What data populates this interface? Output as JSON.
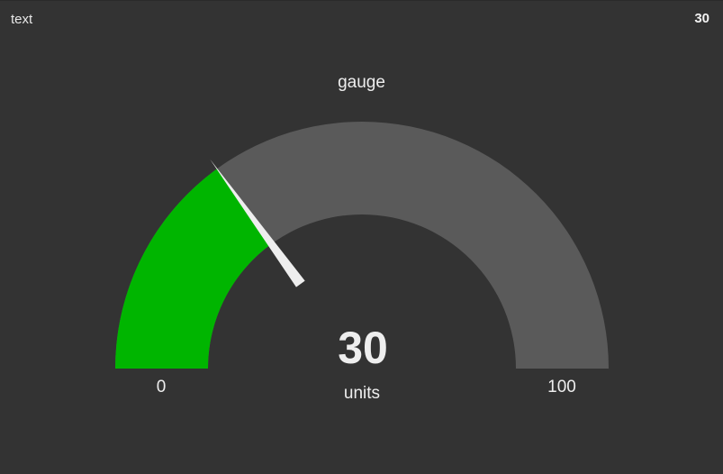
{
  "text_widget": {
    "label": "text",
    "value": "30"
  },
  "gauge": {
    "title": "gauge",
    "value": 30,
    "value_label": "30",
    "units": "units",
    "min": 0,
    "max": 100,
    "min_label": "0",
    "max_label": "100",
    "colors": {
      "fill": "#00b500",
      "track": "#5a5a5a",
      "needle": "#eeeeee",
      "text": "#eeeeee"
    }
  }
}
